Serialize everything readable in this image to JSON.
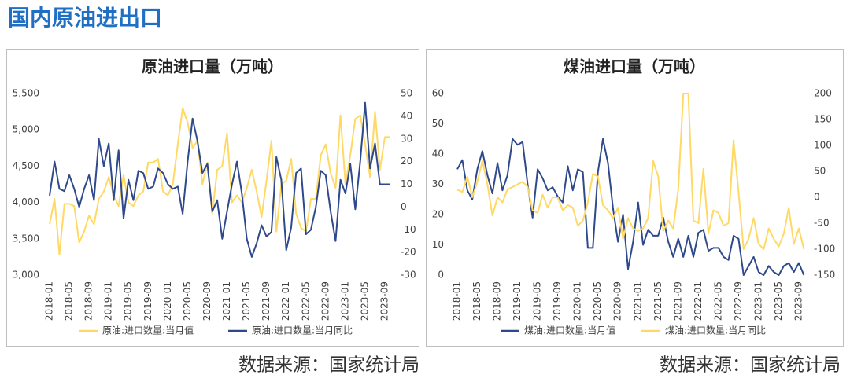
{
  "header": {
    "title": "国内原油进出口"
  },
  "chart_data": [
    {
      "type": "line",
      "title": "原油进口量（万吨）",
      "source": "数据来源：国家统计局",
      "categories": [
        "2018-01",
        null,
        null,
        null,
        "2018-05",
        null,
        null,
        null,
        "2018-09",
        null,
        null,
        null,
        "2019-01",
        null,
        null,
        null,
        "2019-05",
        null,
        null,
        null,
        "2019-09",
        null,
        null,
        null,
        "2020-01",
        null,
        null,
        null,
        "2020-05",
        null,
        null,
        null,
        "2020-09",
        null,
        null,
        null,
        "2021-01",
        null,
        null,
        null,
        "2021-05",
        null,
        null,
        null,
        "2021-09",
        null,
        null,
        null,
        "2022-01",
        null,
        null,
        null,
        "2022-05",
        null,
        null,
        null,
        "2022-09",
        null,
        null,
        null,
        "2023-01",
        null,
        null,
        null,
        "2023-05",
        null,
        null,
        null,
        "2023-09",
        null
      ],
      "ylim": [
        3000,
        5500
      ],
      "yticks": [
        {
          "value": 3000,
          "label": "3,000"
        },
        {
          "value": 3500,
          "label": "3,500"
        },
        {
          "value": 4000,
          "label": "4,000"
        },
        {
          "value": 4500,
          "label": "4,500"
        },
        {
          "value": 5000,
          "label": "5,000"
        },
        {
          "value": 5500,
          "label": "5,500"
        }
      ],
      "y2lim": [
        -30,
        50
      ],
      "y2ticks": [
        -30,
        -20,
        -10,
        0,
        10,
        20,
        30,
        40,
        50
      ],
      "series": [
        {
          "name": "原油:进口数量:当月值",
          "color": "#ffd966",
          "axis": "y",
          "values": [
            3700,
            4050,
            3280,
            3980,
            3980,
            3950,
            3450,
            3600,
            3820,
            3700,
            4050,
            4150,
            4350,
            4100,
            3950,
            4380,
            4000,
            3950,
            4100,
            4150,
            4550,
            4550,
            4600,
            4150,
            4100,
            4250,
            4800,
            5300,
            5100,
            4750,
            4850,
            4250,
            4550,
            3850,
            4450,
            4500,
            4950,
            4000,
            4100,
            4000,
            4200,
            4450,
            4150,
            3800,
            4300,
            4850,
            3600,
            4250,
            4300,
            4600,
            3850,
            3650,
            3600,
            4050,
            4050,
            4650,
            4800,
            4400,
            4200,
            5200,
            4250,
            4650,
            5150,
            5200,
            4800,
            4350,
            5250,
            4450,
            4900,
            4900
          ]
        },
        {
          "name": "原油:进口数量:当月同比",
          "color": "#2e4a8c",
          "axis": "y2",
          "values": [
            5,
            20,
            8,
            7,
            14,
            8,
            0,
            8,
            14,
            3,
            30,
            18,
            28,
            3,
            25,
            -5,
            12,
            3,
            16,
            15,
            8,
            9,
            17,
            15,
            10,
            8,
            9,
            -3,
            20,
            39,
            29,
            15,
            19,
            -2,
            3,
            -14,
            -2,
            10,
            20,
            6,
            -14,
            -22,
            -16,
            -8,
            -13,
            -11,
            22,
            12,
            -19,
            -9,
            15,
            17,
            -12,
            -10,
            0,
            16,
            14,
            -2,
            -15,
            12,
            6,
            19,
            -1,
            20,
            46,
            17,
            28,
            10,
            10,
            10
          ]
        }
      ]
    },
    {
      "type": "line",
      "title": "煤油进口量（万吨）",
      "source": "数据来源：国家统计局",
      "categories": [
        "2018-01",
        null,
        null,
        null,
        "2018-05",
        null,
        null,
        null,
        "2018-09",
        null,
        null,
        null,
        "2019-01",
        null,
        null,
        null,
        "2019-05",
        null,
        null,
        null,
        "2019-09",
        null,
        null,
        null,
        "2020-01",
        null,
        null,
        null,
        "2020-05",
        null,
        null,
        null,
        "2020-09",
        null,
        null,
        null,
        "2021-01",
        null,
        null,
        null,
        "2021-05",
        null,
        null,
        null,
        "2021-09",
        null,
        null,
        null,
        "2022-01",
        null,
        null,
        null,
        "2022-05",
        null,
        null,
        null,
        "2022-09",
        null,
        null,
        null,
        "2023-01",
        null,
        null,
        null,
        "2023-05",
        null,
        null,
        null,
        "2023-09",
        null
      ],
      "ylim": [
        0,
        60
      ],
      "yticks": [
        0,
        10,
        20,
        30,
        40,
        50,
        60
      ],
      "y2lim": [
        -150,
        200
      ],
      "y2ticks": [
        -150,
        -100,
        -50,
        0,
        50,
        100,
        150,
        200
      ],
      "series": [
        {
          "name": "煤油:进口数量:当月值",
          "color": "#2e4a8c",
          "axis": "y",
          "values": [
            35,
            38,
            28,
            25,
            35,
            41,
            33,
            27,
            37,
            28,
            33,
            45,
            43,
            44,
            30,
            19,
            35,
            32,
            28,
            29,
            26,
            24,
            36,
            28,
            35,
            34,
            9,
            9,
            34,
            45,
            37,
            22,
            11,
            20,
            2,
            11,
            24,
            10,
            15,
            13,
            13,
            19,
            11,
            6,
            12,
            6,
            13,
            6,
            14,
            15,
            8,
            9,
            9,
            6,
            5,
            13,
            12,
            0,
            3,
            6,
            1,
            0,
            3,
            1,
            0,
            3,
            4,
            1,
            4,
            0
          ]
        },
        {
          "name": "煤油:进口数量:当月同比",
          "color": "#ffd966",
          "axis": "y2",
          "values": [
            15,
            10,
            40,
            0,
            30,
            70,
            25,
            -35,
            0,
            -10,
            15,
            20,
            25,
            30,
            20,
            -25,
            -30,
            5,
            -20,
            0,
            0,
            -25,
            -15,
            -20,
            -55,
            -45,
            -10,
            45,
            40,
            -15,
            -25,
            -40,
            -20,
            -80,
            -40,
            -60,
            -65,
            -60,
            -40,
            70,
            40,
            -65,
            -45,
            -60,
            15,
            200,
            200,
            -45,
            -50,
            55,
            -70,
            -25,
            -30,
            -55,
            -50,
            110,
            10,
            -100,
            -80,
            -40,
            -90,
            -100,
            -60,
            -80,
            -95,
            -70,
            -20,
            -90,
            -60,
            -100
          ]
        }
      ]
    }
  ]
}
